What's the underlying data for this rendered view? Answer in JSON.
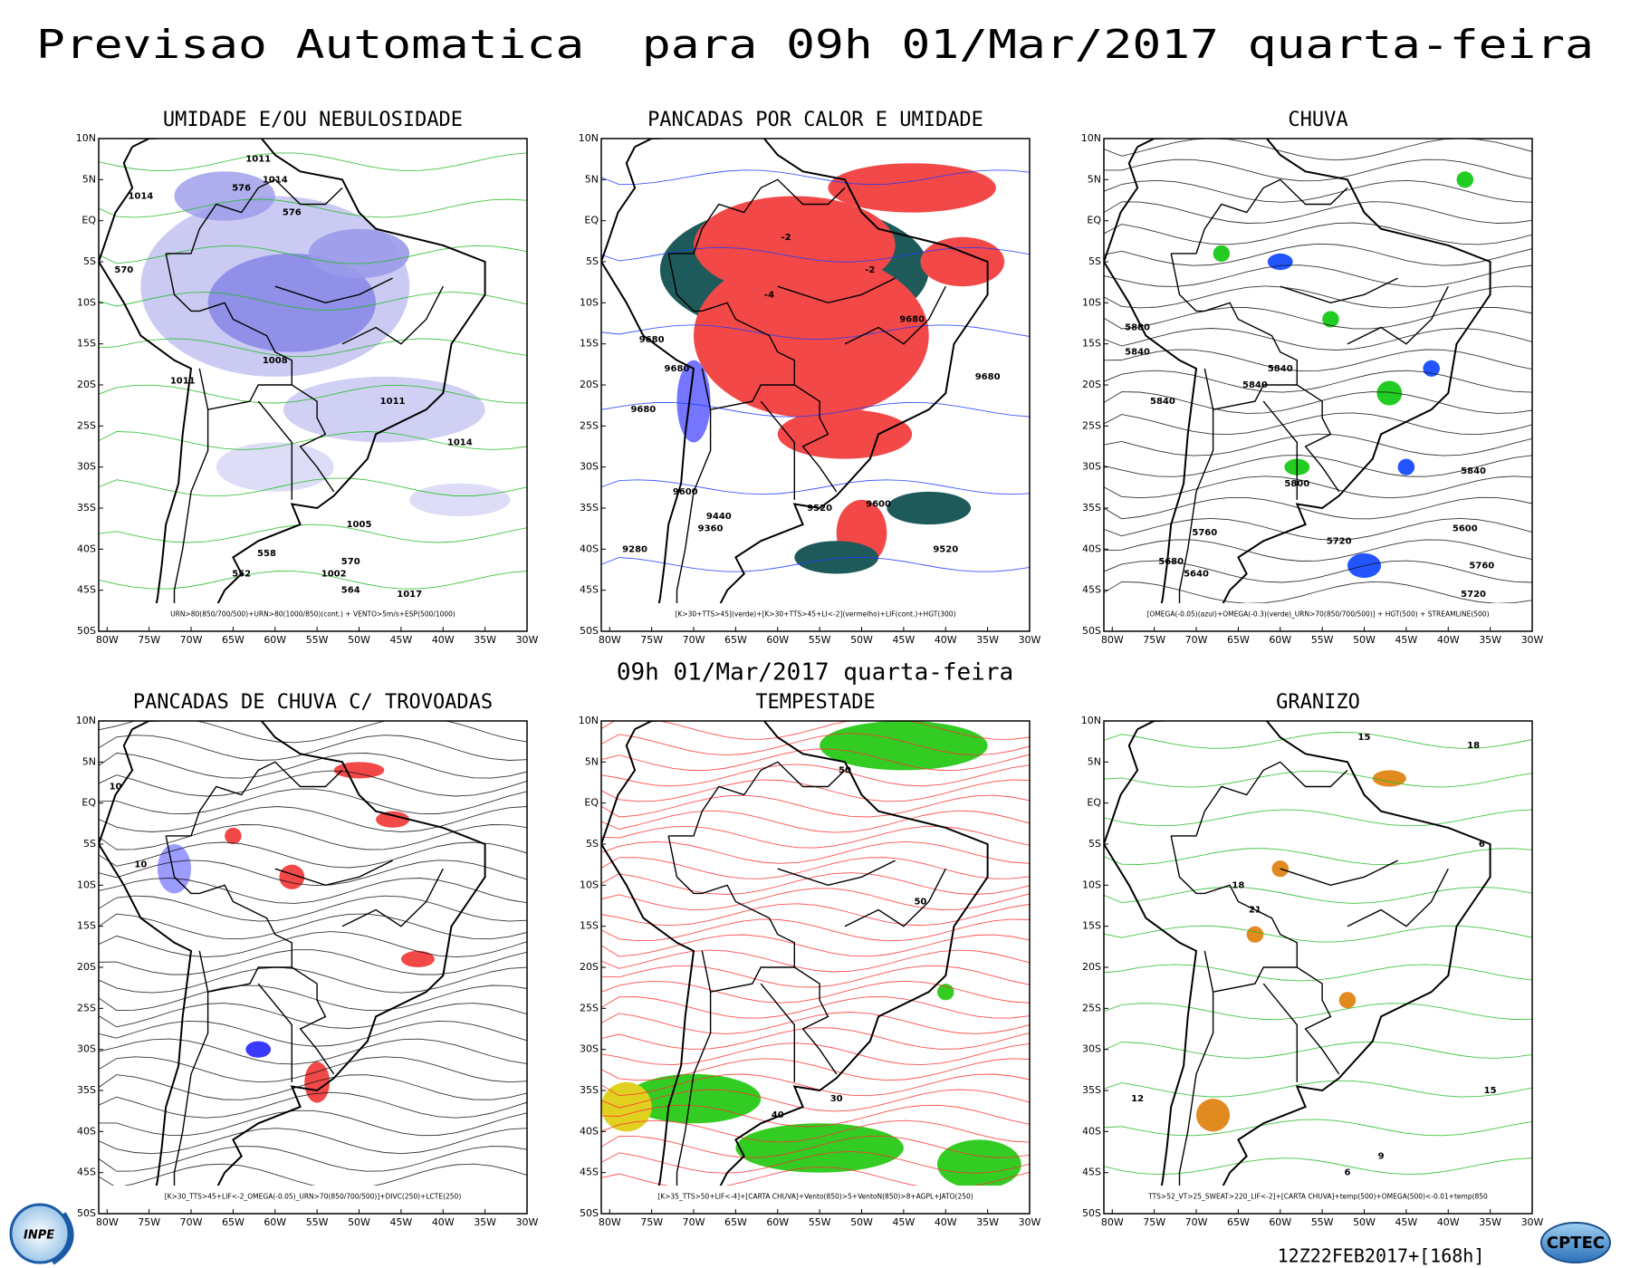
{
  "header": {
    "title": "Previsao Automatica  para 09h 01/Mar/2017 quarta-feira",
    "subtitle": "09h 01/Mar/2017 quarta-feira"
  },
  "axes": {
    "lat_labels": [
      "10N",
      "5N",
      "EQ",
      "5S",
      "10S",
      "15S",
      "20S",
      "25S",
      "30S",
      "35S",
      "40S",
      "45S",
      "50S"
    ],
    "lon_labels": [
      "80W",
      "75W",
      "70W",
      "65W",
      "60W",
      "55W",
      "50W",
      "45W",
      "40W",
      "35W",
      "30W"
    ]
  },
  "panels": [
    {
      "title": "UMIDADE E/OU NEBULOSIDADE",
      "caption": "URN>80(850/700/500)+URN>80(1000/850)(cont.) + VENTO>5m/s+ESP(500/1000)",
      "contour_labels": [
        "1011",
        "1014",
        "1014",
        "576",
        "576",
        "570",
        "1008",
        "1011",
        "1011",
        "1014",
        "1005",
        "1002",
        "1017",
        "570",
        "564",
        "558",
        "552"
      ]
    },
    {
      "title": "PANCADAS POR CALOR E UMIDADE",
      "caption": "[K>30+TTS>45](verde)+[K>30+TTS>45+LI<-2](vermelho)+LIF(cont.)+HGT(300)",
      "contour_labels": [
        "9680",
        "9680",
        "9680",
        "9680",
        "9680",
        "9600",
        "9520",
        "9600",
        "9440",
        "9360",
        "9280",
        "9520",
        "-2",
        "-4",
        "-2"
      ]
    },
    {
      "title": "CHUVA",
      "caption": "[OMEGA(-0.05)(azul)+OMEGA(-0.3)(verde)_URN>70(850/700/500)] + HGT(500) + STREAMLINE(500)",
      "contour_labels": [
        "5880",
        "5840",
        "5840",
        "5840",
        "5840",
        "5800",
        "5840",
        "5760",
        "5720",
        "5680",
        "5600",
        "5640",
        "5720",
        "5760"
      ]
    },
    {
      "title": "PANCADAS DE CHUVA C/ TROVOADAS",
      "caption": "[K>30_TTS>45+LIF<-2_OMEGA(-0.05)_URN>70(850/700/500)]+DIVC(250)+LCTE(250)",
      "contour_labels": [
        "10",
        "10"
      ]
    },
    {
      "title": "TEMPESTADE",
      "caption": "[K>35_TTS>50+LIF<-4]+[CARTA CHUVA]+Vento(850)>5+VentoN(850)>8+AGPL+JATO(250)",
      "contour_labels": [
        "50",
        "50",
        "40",
        "30"
      ]
    },
    {
      "title": "GRANIZO",
      "caption": "TTS>52_VT>25_SWEAT>220_LIF<-2]+[CARTA CHUVA]+temp(500)+OMEGA(500)<-0.01+temp(850",
      "contour_labels": [
        "18",
        "15",
        "6",
        "21",
        "18",
        "15",
        "12",
        "9",
        "6"
      ]
    }
  ],
  "footer": {
    "run": "12Z22FEB2017+[168h]",
    "logo_left": "INPE",
    "logo_right": "CPTEC"
  }
}
